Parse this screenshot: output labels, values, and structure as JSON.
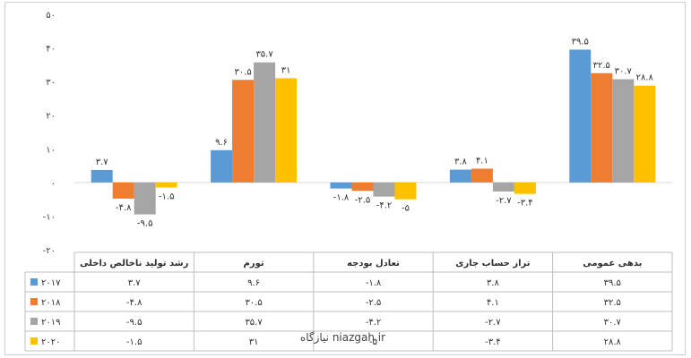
{
  "chart_data": {
    "type": "bar",
    "title": "",
    "xlabel": "",
    "ylabel": "",
    "ylim": [
      -20,
      50
    ],
    "y_ticks": [
      "-۲۰",
      "-۱۰",
      "۰",
      "۱۰",
      "۲۰",
      "۳۰",
      "۴۰",
      "۵۰"
    ],
    "grid": false,
    "legend": "table-left",
    "categories": [
      "بدهی عمومی",
      "تراز حساب جاری",
      "تعادل بودجه",
      "تورم",
      "رشد تولید ناخالص داخلی"
    ],
    "series": [
      {
        "name": "۲۰۱۷",
        "color": "#5B9BD5",
        "values": [
          39.5,
          3.8,
          -1.8,
          9.6,
          3.7
        ],
        "labels": [
          "۳۹.۵",
          "۳.۸",
          "-۱.۸",
          "۹.۶",
          "۳.۷"
        ]
      },
      {
        "name": "۲۰۱۸",
        "color": "#ED7D31",
        "values": [
          32.5,
          4.1,
          -2.5,
          30.5,
          -4.8
        ],
        "labels": [
          "۳۲.۵",
          "۴.۱",
          "-۲.۵",
          "۳۰.۵",
          "-۴.۸"
        ]
      },
      {
        "name": "۲۰۱۹",
        "color": "#A5A5A5",
        "values": [
          30.7,
          -2.7,
          -4.2,
          35.7,
          -9.5
        ],
        "labels": [
          "۳۰.۷",
          "-۲.۷",
          "-۴.۲",
          "۳۵.۷",
          "-۹.۵"
        ]
      },
      {
        "name": "۲۰۲۰",
        "color": "#FFC000",
        "values": [
          28.8,
          -3.4,
          -5.0,
          31,
          -1.5
        ],
        "labels": [
          "۲۸.۸",
          "-۳.۴",
          "-۵",
          "۳۱",
          "-۱.۵"
        ]
      }
    ]
  },
  "watermark": "نیازگاه  niazgah.ir"
}
